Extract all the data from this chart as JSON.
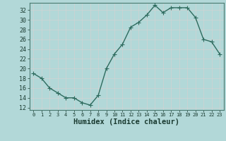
{
  "x": [
    0,
    1,
    2,
    3,
    4,
    5,
    6,
    7,
    8,
    9,
    10,
    11,
    12,
    13,
    14,
    15,
    16,
    17,
    18,
    19,
    20,
    21,
    22,
    23
  ],
  "y": [
    19,
    18,
    16,
    15,
    14,
    14,
    13,
    12.5,
    14.5,
    20,
    23,
    25,
    28.5,
    29.5,
    31,
    33,
    31.5,
    32.5,
    32.5,
    32.5,
    30.5,
    26,
    25.5,
    23
  ],
  "line_color": "#2e6b5e",
  "marker": "+",
  "bg_color": "#b2d8d8",
  "grid_color": "#c8dede",
  "pink_grid": "#d4c8c8",
  "xlabel": "Humidex (Indice chaleur)",
  "xlabel_fontsize": 7.5,
  "ylabel_ticks": [
    12,
    14,
    16,
    18,
    20,
    22,
    24,
    26,
    28,
    30,
    32
  ],
  "ylim": [
    11.5,
    33.5
  ],
  "xlim": [
    -0.5,
    23.5
  ],
  "line_width": 1.0,
  "marker_size": 4
}
